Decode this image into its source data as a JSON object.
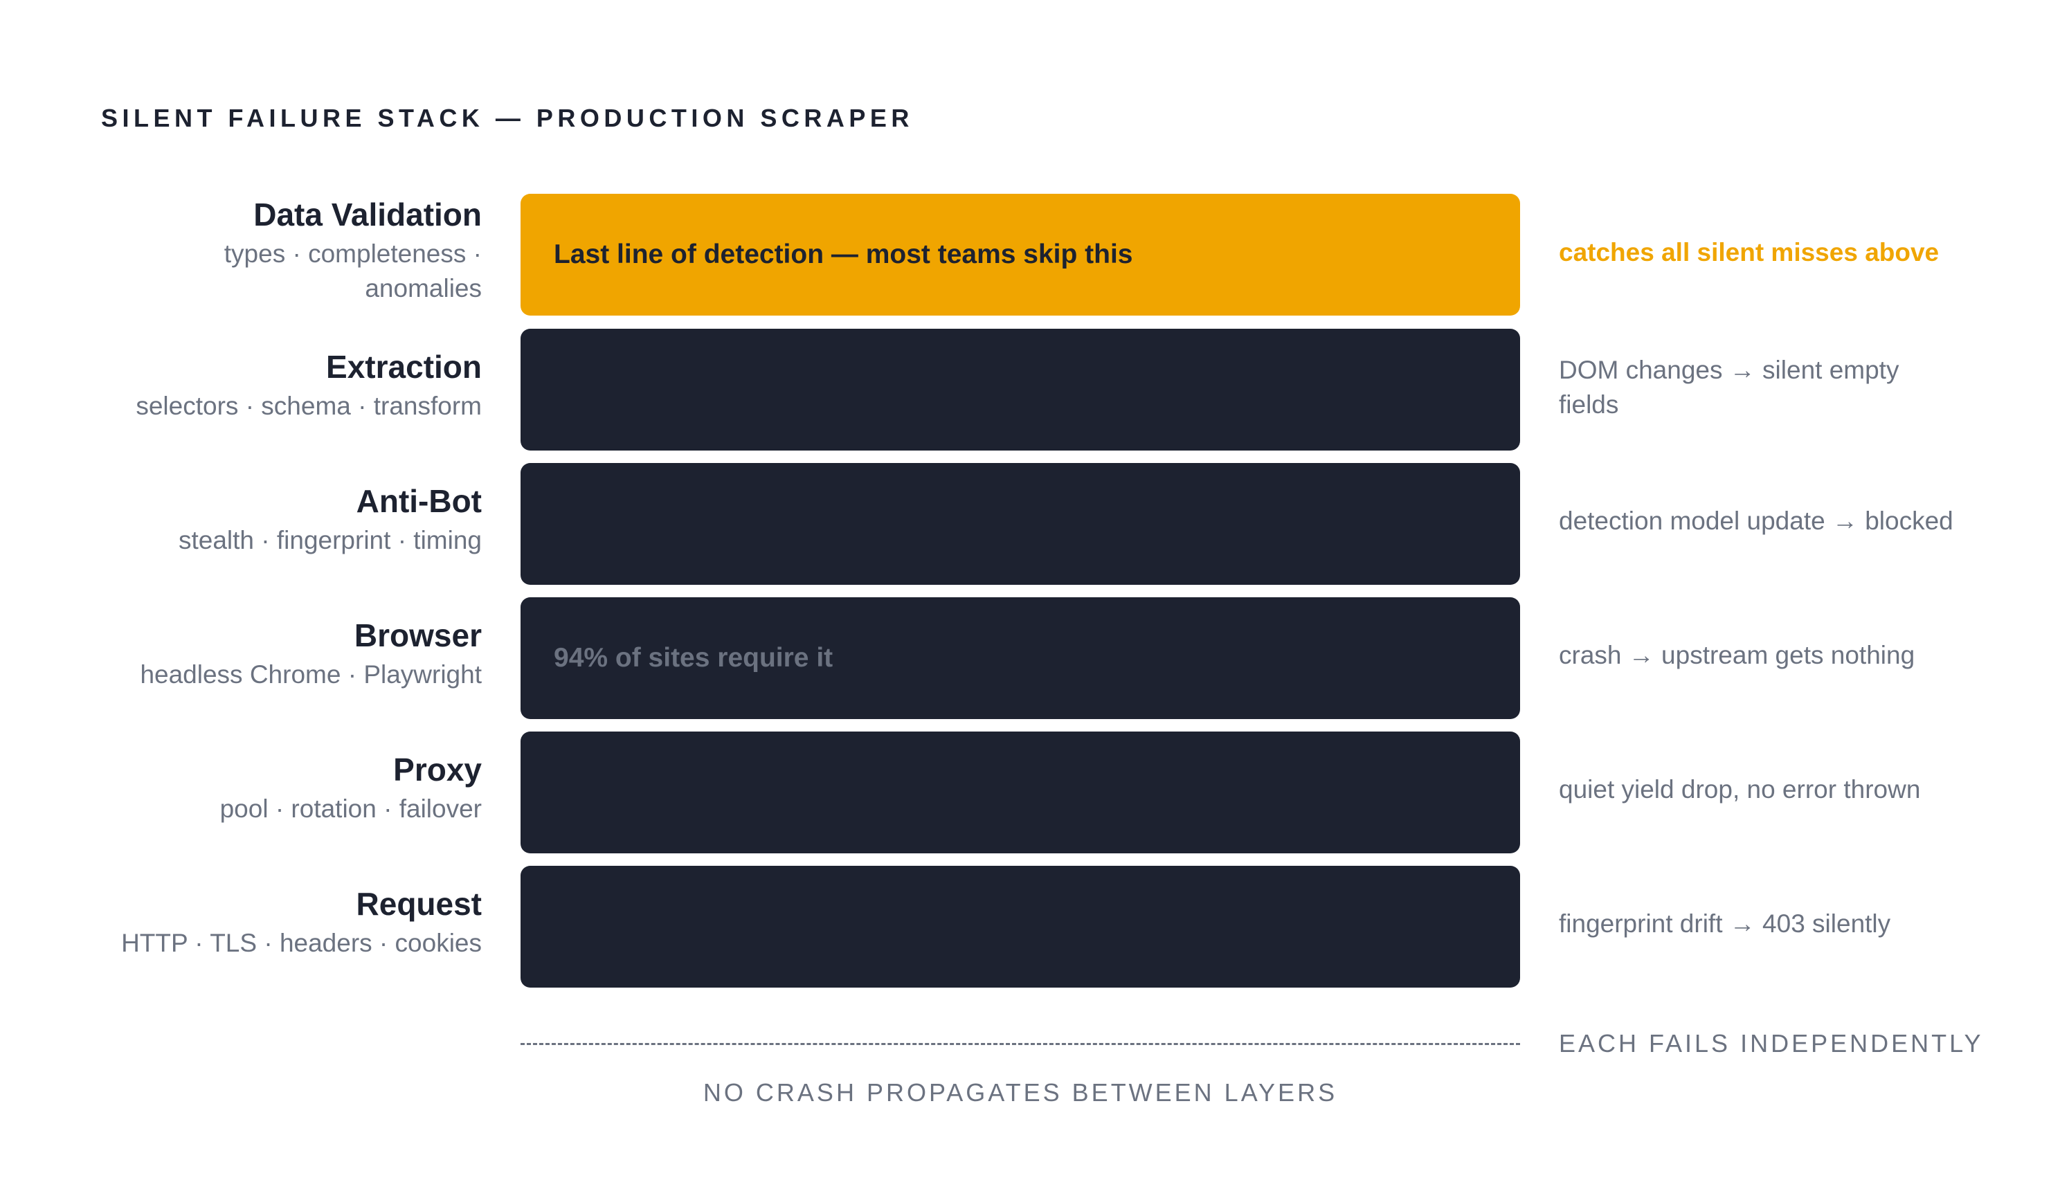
{
  "title": "SILENT FAILURE STACK — PRODUCTION SCRAPER",
  "layers": [
    {
      "name": "Data Validation",
      "sub_line1": "types · completeness ·",
      "sub_line2": "anomalies",
      "bar_text": "Last line of detection — most teams skip this",
      "note": "catches all silent misses above",
      "highlight": true,
      "color": "#f0a500"
    },
    {
      "name": "Extraction",
      "sub_line1": "selectors · schema · transform",
      "bar_text": "",
      "note_line1": "DOM changes → silent empty",
      "note_line2": "fields"
    },
    {
      "name": "Anti-Bot",
      "sub_line1": "stealth · fingerprint · timing",
      "bar_text": "",
      "note": "detection model update → blocked"
    },
    {
      "name": "Browser",
      "sub_line1": "headless Chrome · Playwright",
      "bar_text": "94% of sites require it",
      "note": "crash → upstream gets nothing"
    },
    {
      "name": "Proxy",
      "sub_line1": "pool · rotation · failover",
      "bar_text": "",
      "note": "quiet yield drop, no error thrown"
    },
    {
      "name": "Request",
      "sub_line1": "HTTP · TLS · headers · cookies",
      "bar_text": "",
      "note": "fingerprint drift → 403 silently"
    }
  ],
  "footer": {
    "right": "EACH FAILS INDEPENDENTLY",
    "center": "NO CRASH PROPAGATES BETWEEN LAYERS"
  },
  "colors": {
    "bar": "#1d2230",
    "accent": "#f0a500",
    "muted": "#6b7280"
  }
}
